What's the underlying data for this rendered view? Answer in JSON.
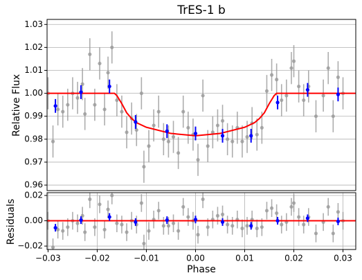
{
  "chart_data": [
    {
      "type": "scatter",
      "title": "TrES-1 b",
      "y_label": "Relative Flux",
      "xlim": [
        -0.0302,
        0.0326
      ],
      "ylim": [
        0.9576,
        1.0322
      ],
      "yticks": [
        0.96,
        0.97,
        0.98,
        0.99,
        {
          "value": 1,
          "label": "1.00"
        },
        1.01,
        1.02,
        1.03
      ],
      "grid": true,
      "points": {
        "color": "#999999",
        "error": 0.007,
        "x": [
          -0.03,
          -0.029,
          -0.028,
          -0.027,
          -0.026,
          -0.025,
          -0.024,
          -0.023,
          -0.0225,
          -0.0215,
          -0.0205,
          -0.0195,
          -0.0185,
          -0.0178,
          -0.017,
          -0.016,
          -0.015,
          -0.014,
          -0.013,
          -0.012,
          -0.011,
          -0.0105,
          -0.0095,
          -0.0085,
          -0.0075,
          -0.0065,
          -0.0055,
          -0.0045,
          -0.0035,
          -0.0025,
          -0.0015,
          -0.0005,
          0.0005,
          0.0015,
          0.0025,
          0.0035,
          0.0045,
          0.0055,
          0.0065,
          0.0075,
          0.0085,
          0.0095,
          0.0105,
          0.0115,
          0.0125,
          0.0135,
          0.0145,
          0.0155,
          0.0165,
          0.0175,
          0.0185,
          0.0195,
          0.02,
          0.021,
          0.022,
          0.023,
          0.0245,
          0.026,
          0.027,
          0.028,
          0.029,
          0.03
        ],
        "values": [
          1.0,
          0.979,
          0.993,
          0.992,
          0.995,
          1.0,
          0.998,
          1.004,
          0.991,
          1.017,
          0.995,
          1.013,
          0.993,
          1.009,
          1.02,
          0.997,
          0.992,
          0.983,
          0.989,
          0.984,
          1.0,
          0.968,
          0.977,
          0.986,
          0.992,
          0.98,
          0.979,
          0.981,
          0.974,
          0.992,
          0.985,
          0.982,
          0.971,
          0.999,
          0.977,
          0.983,
          0.986,
          0.988,
          0.98,
          0.979,
          0.985,
          0.979,
          0.981,
          0.987,
          0.982,
          0.985,
          1.001,
          1.008,
          1.006,
          0.997,
          0.999,
          1.011,
          1.014,
          1.003,
          0.997,
          1.003,
          0.99,
          0.999,
          1.011,
          0.99,
          1.007,
          1.0
        ]
      },
      "binned": {
        "color": "#0000ff",
        "error": 0.003,
        "x": [
          -0.0285,
          -0.0233,
          -0.0175,
          -0.0122,
          -0.0058,
          0.0,
          0.0055,
          0.0113,
          0.0167,
          0.0228,
          0.029
        ],
        "values": [
          0.9945,
          1.0005,
          1.003,
          0.9875,
          0.9835,
          0.9825,
          0.9815,
          0.9815,
          0.996,
          1.0015,
          0.9995
        ]
      },
      "model": {
        "color": "#ff0000",
        "x": [
          -0.0302,
          -0.0165,
          -0.016,
          -0.015,
          -0.014,
          -0.013,
          -0.012,
          -0.01,
          -0.005,
          0.0,
          0.005,
          0.01,
          0.012,
          0.013,
          0.014,
          0.015,
          0.016,
          0.0165,
          0.0326
        ],
        "values": [
          1.0,
          1.0,
          0.999,
          0.9955,
          0.9915,
          0.989,
          0.9872,
          0.9852,
          0.9825,
          0.9815,
          0.9825,
          0.9852,
          0.9872,
          0.989,
          0.9915,
          0.9955,
          0.999,
          1.0,
          1.0
        ]
      }
    },
    {
      "type": "scatter",
      "y_label": "Residuals",
      "x_label": "Phase",
      "xlim": [
        -0.0302,
        0.0326
      ],
      "ylim": [
        -0.0227,
        0.0222
      ],
      "xticks": [
        {
          "value": -0.03,
          "label": "−0.03"
        },
        {
          "value": -0.02,
          "label": "−0.02"
        },
        {
          "value": -0.01,
          "label": "−0.01"
        },
        {
          "value": 0,
          "label": "0.00"
        },
        0.01,
        0.02,
        0.03
      ],
      "yticks": [
        {
          "value": -0.02,
          "label": "−0.02"
        },
        {
          "value": 0,
          "label": "0.00"
        },
        0.02
      ],
      "grid": true,
      "points": {
        "color": "#999999",
        "error": 0.007,
        "x": [
          -0.03,
          -0.029,
          -0.028,
          -0.027,
          -0.026,
          -0.025,
          -0.024,
          -0.023,
          -0.0225,
          -0.0215,
          -0.0205,
          -0.0195,
          -0.0185,
          -0.0178,
          -0.017,
          -0.016,
          -0.015,
          -0.014,
          -0.013,
          -0.012,
          -0.011,
          -0.0105,
          -0.0095,
          -0.0085,
          -0.0075,
          -0.0065,
          -0.0055,
          -0.0045,
          -0.0035,
          -0.0025,
          -0.0015,
          -0.0005,
          0.0005,
          0.0015,
          0.0025,
          0.0035,
          0.0045,
          0.0055,
          0.0065,
          0.0075,
          0.0085,
          0.0095,
          0.0105,
          0.0115,
          0.0125,
          0.0135,
          0.0145,
          0.0155,
          0.0165,
          0.0175,
          0.0185,
          0.0195,
          0.02,
          0.021,
          0.022,
          0.023,
          0.0245,
          0.026,
          0.027,
          0.028,
          0.029,
          0.03
        ],
        "values": [
          0.0,
          -0.021,
          -0.007,
          -0.008,
          -0.005,
          0.0,
          -0.002,
          0.004,
          -0.009,
          0.017,
          -0.005,
          0.013,
          -0.007,
          0.009,
          0.02,
          -0.002,
          -0.003,
          -0.009,
          0.0,
          -0.003,
          0.014,
          -0.018,
          -0.008,
          0.001,
          0.008,
          -0.004,
          -0.004,
          -0.002,
          -0.008,
          0.011,
          0.003,
          0.0,
          -0.011,
          0.017,
          -0.005,
          0.001,
          0.004,
          0.005,
          -0.003,
          -0.004,
          0.001,
          -0.006,
          -0.004,
          0.001,
          -0.006,
          -0.005,
          0.008,
          0.01,
          0.006,
          -0.003,
          -0.001,
          0.011,
          0.014,
          0.003,
          -0.003,
          0.003,
          -0.01,
          -0.001,
          0.011,
          -0.01,
          0.007,
          0.0
        ]
      },
      "binned": {
        "color": "#0000ff",
        "error": 0.003,
        "x": [
          -0.0285,
          -0.0233,
          -0.0175,
          -0.0122,
          -0.0058,
          0.0,
          0.0055,
          0.0113,
          0.0167,
          0.0228,
          0.029
        ],
        "values": [
          -0.0055,
          0.0005,
          0.003,
          -0.001,
          0.0005,
          0.001,
          -0.001,
          -0.004,
          0.0,
          0.002,
          -0.0005
        ]
      },
      "model": {
        "color": "#ff0000",
        "x": [
          -0.0302,
          0.0326
        ],
        "values": [
          0,
          0
        ]
      }
    }
  ]
}
